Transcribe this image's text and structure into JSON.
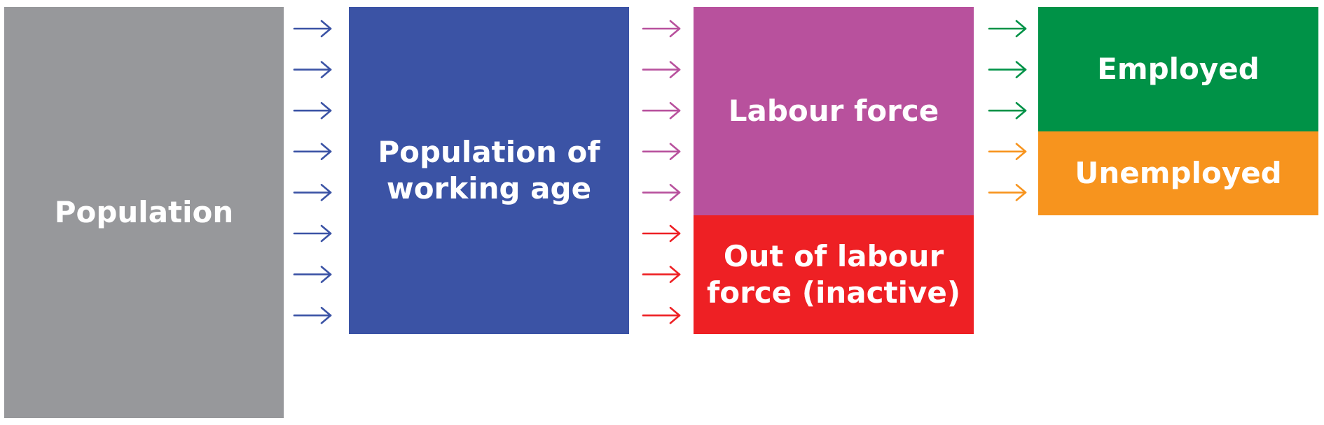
{
  "boxes": {
    "population": {
      "label": "Population",
      "color": "#97989b"
    },
    "working_age": {
      "label_line1": "Population of",
      "label_line2": "working age",
      "color": "#3b53a5"
    },
    "labour_force": {
      "label": "Labour force",
      "color": "#b8519d"
    },
    "out_of_labour_force": {
      "label_line1": "Out of labour",
      "label_line2": "force (inactive)",
      "color": "#ee2024"
    },
    "employed": {
      "label": "Employed",
      "color": "#009247"
    },
    "unemployed": {
      "label": "Unemployed",
      "color": "#f7941e"
    }
  },
  "arrow_columns": [
    {
      "from": "population",
      "colors": [
        "#3b53a5",
        "#3b53a5",
        "#3b53a5",
        "#3b53a5",
        "#3b53a5",
        "#3b53a5",
        "#3b53a5",
        "#3b53a5"
      ]
    },
    {
      "from": "working_age",
      "colors": [
        "#b8519d",
        "#b8519d",
        "#b8519d",
        "#b8519d",
        "#b8519d",
        "#ee2024",
        "#ee2024",
        "#ee2024"
      ]
    },
    {
      "from": "labour_force",
      "colors": [
        "#009247",
        "#009247",
        "#009247",
        "#f7941e",
        "#f7941e"
      ]
    }
  ]
}
